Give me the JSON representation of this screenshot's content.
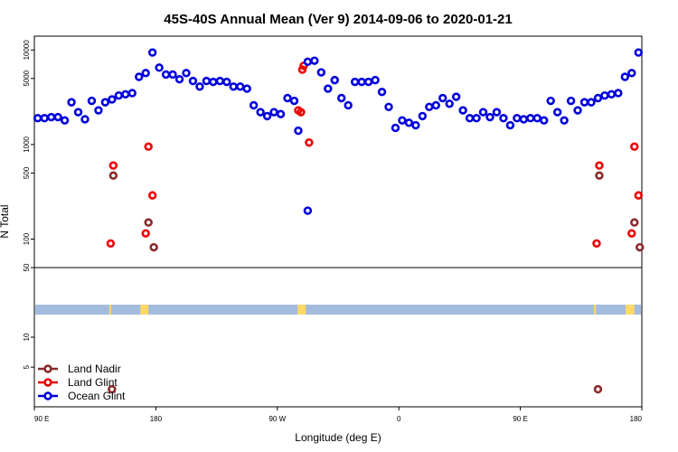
{
  "chart_data": {
    "type": "scatter",
    "title": "45S-40S Annual Mean (Ver 9)   2014-09-06 to 2020-01-21",
    "xlabel": "Longitude (deg E)",
    "ylabel": "N Total",
    "x_ticks": [
      {
        "x": 90,
        "label": "90 E"
      },
      {
        "x": 180,
        "label": "180"
      },
      {
        "x": 270,
        "label": "90 W"
      },
      {
        "x": 360,
        "label": "0"
      },
      {
        "x": 450,
        "label": "90 E"
      },
      {
        "x": 540,
        "label": "180"
      }
    ],
    "xlim": [
      90,
      540
    ],
    "upper_panel": {
      "scale": "log",
      "ylim": [
        50,
        14000
      ],
      "y_ticks": [
        {
          "v": 50,
          "label": "50"
        },
        {
          "v": 100,
          "label": "100"
        },
        {
          "v": 500,
          "label": "500"
        },
        {
          "v": 1000,
          "label": "1000"
        },
        {
          "v": 5000,
          "label": "5000"
        },
        {
          "v": 10000,
          "label": "10000"
        }
      ]
    },
    "lower_panel": {
      "scale": "log",
      "ylim": [
        2,
        50
      ],
      "y_ticks": [
        {
          "v": 5,
          "label": "5"
        },
        {
          "v": 10,
          "label": "10"
        }
      ]
    },
    "series": [
      {
        "name": "Land Nadir",
        "color": "#8b2a2a",
        "points": [
          [
            148.5,
            470
          ],
          [
            147.5,
            3
          ],
          [
            174.5,
            150
          ],
          [
            178.5,
            82
          ],
          [
            508.5,
            470
          ],
          [
            507.5,
            3
          ],
          [
            534.5,
            150
          ],
          [
            538.5,
            82
          ]
        ]
      },
      {
        "name": "Land Glint",
        "color": "#ee0000",
        "points": [
          [
            146.5,
            90
          ],
          [
            148.5,
            600
          ],
          [
            172.5,
            115
          ],
          [
            174.5,
            950
          ],
          [
            177.5,
            290
          ],
          [
            285.5,
            2300
          ],
          [
            287.5,
            2200
          ],
          [
            288.5,
            6200
          ],
          [
            289.5,
            6800
          ],
          [
            293.5,
            1050
          ],
          [
            506.5,
            90
          ],
          [
            508.5,
            600
          ],
          [
            532.5,
            115
          ],
          [
            534.5,
            950
          ],
          [
            537.5,
            290
          ]
        ]
      },
      {
        "name": "Ocean Glint",
        "color": "#0000dd",
        "points": [
          [
            92.5,
            1900
          ],
          [
            97.5,
            1900
          ],
          [
            102.5,
            1950
          ],
          [
            107.5,
            1950
          ],
          [
            112.5,
            1800
          ],
          [
            117.5,
            2800
          ],
          [
            122.5,
            2200
          ],
          [
            127.5,
            1850
          ],
          [
            132.5,
            2900
          ],
          [
            137.5,
            2300
          ],
          [
            142.5,
            2800
          ],
          [
            147.5,
            3000
          ],
          [
            152.5,
            3300
          ],
          [
            157.5,
            3400
          ],
          [
            162.5,
            3500
          ],
          [
            167.5,
            5200
          ],
          [
            172.5,
            5700
          ],
          [
            177.5,
            9400
          ],
          [
            182.5,
            6500
          ],
          [
            187.5,
            5500
          ],
          [
            192.5,
            5500
          ],
          [
            197.5,
            4900
          ],
          [
            202.5,
            5700
          ],
          [
            207.5,
            4700
          ],
          [
            212.5,
            4100
          ],
          [
            217.5,
            4700
          ],
          [
            222.5,
            4600
          ],
          [
            227.5,
            4700
          ],
          [
            232.5,
            4600
          ],
          [
            237.5,
            4100
          ],
          [
            242.5,
            4100
          ],
          [
            247.5,
            3900
          ],
          [
            252.5,
            2600
          ],
          [
            257.5,
            2200
          ],
          [
            262.5,
            2000
          ],
          [
            267.5,
            2200
          ],
          [
            272.5,
            2100
          ],
          [
            277.5,
            3100
          ],
          [
            282.5,
            2900
          ],
          [
            285.5,
            1400
          ],
          [
            292.5,
            200
          ],
          [
            292.5,
            7500
          ],
          [
            297.5,
            7700
          ],
          [
            302.5,
            5800
          ],
          [
            307.5,
            3900
          ],
          [
            312.5,
            4800
          ],
          [
            317.5,
            3100
          ],
          [
            322.5,
            2600
          ],
          [
            327.5,
            4600
          ],
          [
            332.5,
            4600
          ],
          [
            337.5,
            4600
          ],
          [
            342.5,
            4800
          ],
          [
            347.5,
            3600
          ],
          [
            352.5,
            2500
          ],
          [
            357.5,
            1500
          ],
          [
            362.5,
            1800
          ],
          [
            367.5,
            1700
          ],
          [
            372.5,
            1600
          ],
          [
            377.5,
            2000
          ],
          [
            382.5,
            2500
          ],
          [
            387.5,
            2600
          ],
          [
            392.5,
            3100
          ],
          [
            397.5,
            2700
          ],
          [
            402.5,
            3200
          ],
          [
            407.5,
            2300
          ],
          [
            412.5,
            1900
          ],
          [
            417.5,
            1900
          ],
          [
            422.5,
            2200
          ],
          [
            427.5,
            1950
          ],
          [
            432.5,
            2200
          ],
          [
            437.5,
            1900
          ],
          [
            442.5,
            1600
          ],
          [
            447.5,
            1900
          ],
          [
            452.5,
            1850
          ],
          [
            457.5,
            1900
          ],
          [
            462.5,
            1900
          ],
          [
            467.5,
            1800
          ],
          [
            472.5,
            2900
          ],
          [
            477.5,
            2200
          ],
          [
            482.5,
            1800
          ],
          [
            487.5,
            2900
          ],
          [
            492.5,
            2300
          ],
          [
            497.5,
            2800
          ],
          [
            502.5,
            2800
          ],
          [
            507.5,
            3100
          ],
          [
            512.5,
            3300
          ],
          [
            517.5,
            3400
          ],
          [
            522.5,
            3500
          ],
          [
            527.5,
            5200
          ],
          [
            532.5,
            5700
          ],
          [
            537.5,
            9400
          ]
        ]
      }
    ],
    "legend": {
      "location": "lower-left",
      "entries": [
        "Land Nadir",
        "Land Glint",
        "Ocean Glint"
      ]
    },
    "band": {
      "description": "surface-type strip",
      "ocean_color": "#a3bbdd",
      "land_color": "#ffd866",
      "land_ranges": [
        [
          145.5,
          146.5
        ],
        [
          168.5,
          174.5
        ],
        [
          285,
          291
        ],
        [
          504.5,
          506
        ],
        [
          528,
          534.5
        ]
      ]
    }
  }
}
